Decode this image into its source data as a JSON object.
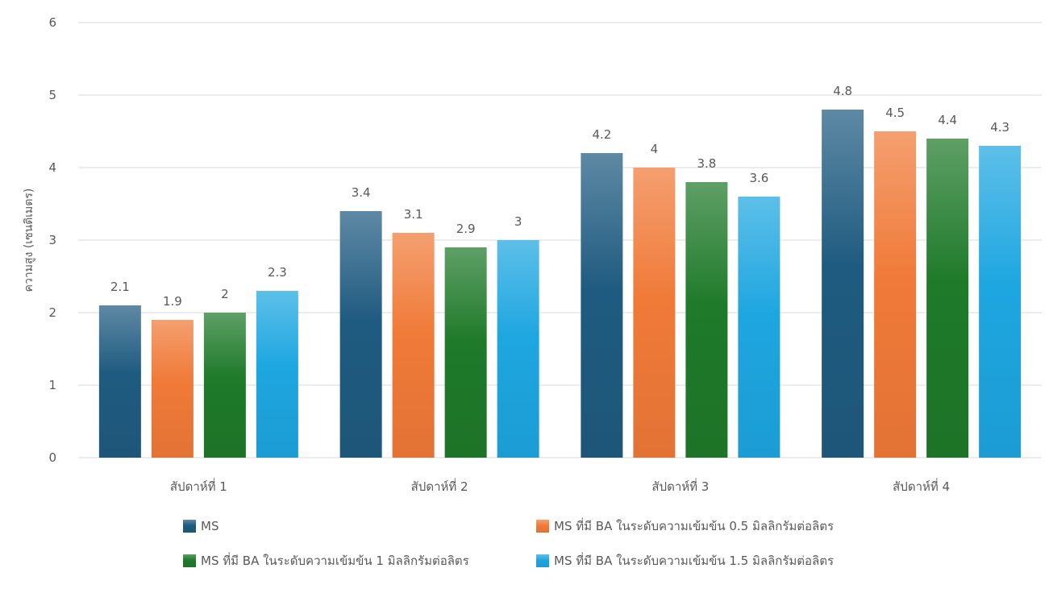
{
  "chart_data": {
    "type": "bar",
    "title": "",
    "xlabel": "",
    "ylabel": "ความสูง (เซนติเมตร)",
    "ylim": [
      0,
      6
    ],
    "yticks": [
      0,
      1,
      2,
      3,
      4,
      5,
      6
    ],
    "grid": true,
    "legend_position": "bottom",
    "categories": [
      "สัปดาห์ที่ 1",
      "สัปดาห์ที่ 2",
      "สัปดาห์ที่ 3",
      "สัปดาห์ที่ 4"
    ],
    "series": [
      {
        "name": "MS",
        "values": [
          2.1,
          3.4,
          4.2,
          4.8
        ],
        "color": "#1f5b80"
      },
      {
        "name": "MS ที่มี BA ในระดับความเข้มข้น 0.5 มิลลิกรัมต่อลิตร",
        "values": [
          1.9,
          3.1,
          4,
          4.5
        ],
        "color": "#f07a38"
      },
      {
        "name": "MS ที่มี BA ในระดับความเข้มข้น 1 มิลลิกรัมต่อลิตร",
        "values": [
          2,
          2.9,
          3.8,
          4.4
        ],
        "color": "#1f7a2a"
      },
      {
        "name": "MS ที่มี BA ในระดับความเข้มข้น 1.5 มิลลิกรัมต่อลิตร",
        "values": [
          2.3,
          3,
          3.6,
          4.3
        ],
        "color": "#1ea6e0"
      }
    ]
  }
}
